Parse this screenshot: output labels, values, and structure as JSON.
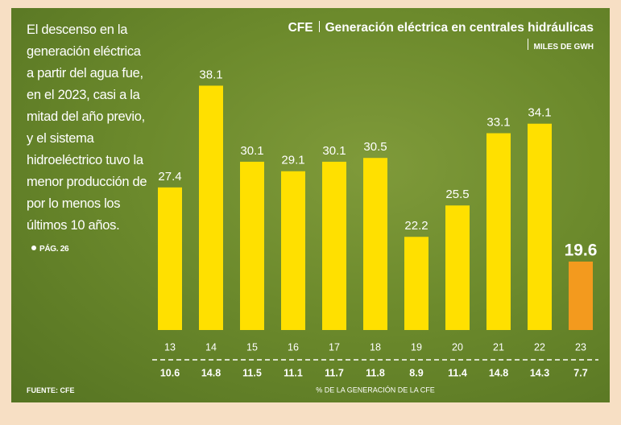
{
  "chart_data": {
    "type": "bar",
    "title": "CFE",
    "subtitle": "Generación eléctrica en centrales hidráulicas",
    "unit": "MILES DE GWH",
    "note": "El descenso en la generación eléctrica a partir del agua fue, en el 2023, casi a la mitad del año previo, y el sistema hidroeléctrico tuvo la menor producción de por lo menos los últimos 10 años.",
    "page_ref": "PÁG. 26",
    "source": "FUENTE: CFE",
    "categories": [
      "13",
      "14",
      "15",
      "16",
      "17",
      "18",
      "19",
      "20",
      "21",
      "22",
      "23"
    ],
    "values": [
      27.4,
      38.1,
      30.1,
      29.1,
      30.1,
      30.5,
      22.2,
      25.5,
      33.1,
      34.1,
      19.6
    ],
    "colors": [
      "#ffe000",
      "#ffe000",
      "#ffe000",
      "#ffe000",
      "#ffe000",
      "#ffe000",
      "#ffe000",
      "#ffe000",
      "#ffe000",
      "#ffe000",
      "#f39a1e"
    ],
    "ylim": [
      12.4,
      40
    ],
    "share": {
      "name": "% DE LA GENERACIÓN DE LA CFE",
      "values": [
        10.6,
        14.8,
        11.5,
        11.1,
        11.7,
        11.8,
        8.9,
        11.4,
        14.8,
        14.3,
        7.7
      ]
    }
  }
}
